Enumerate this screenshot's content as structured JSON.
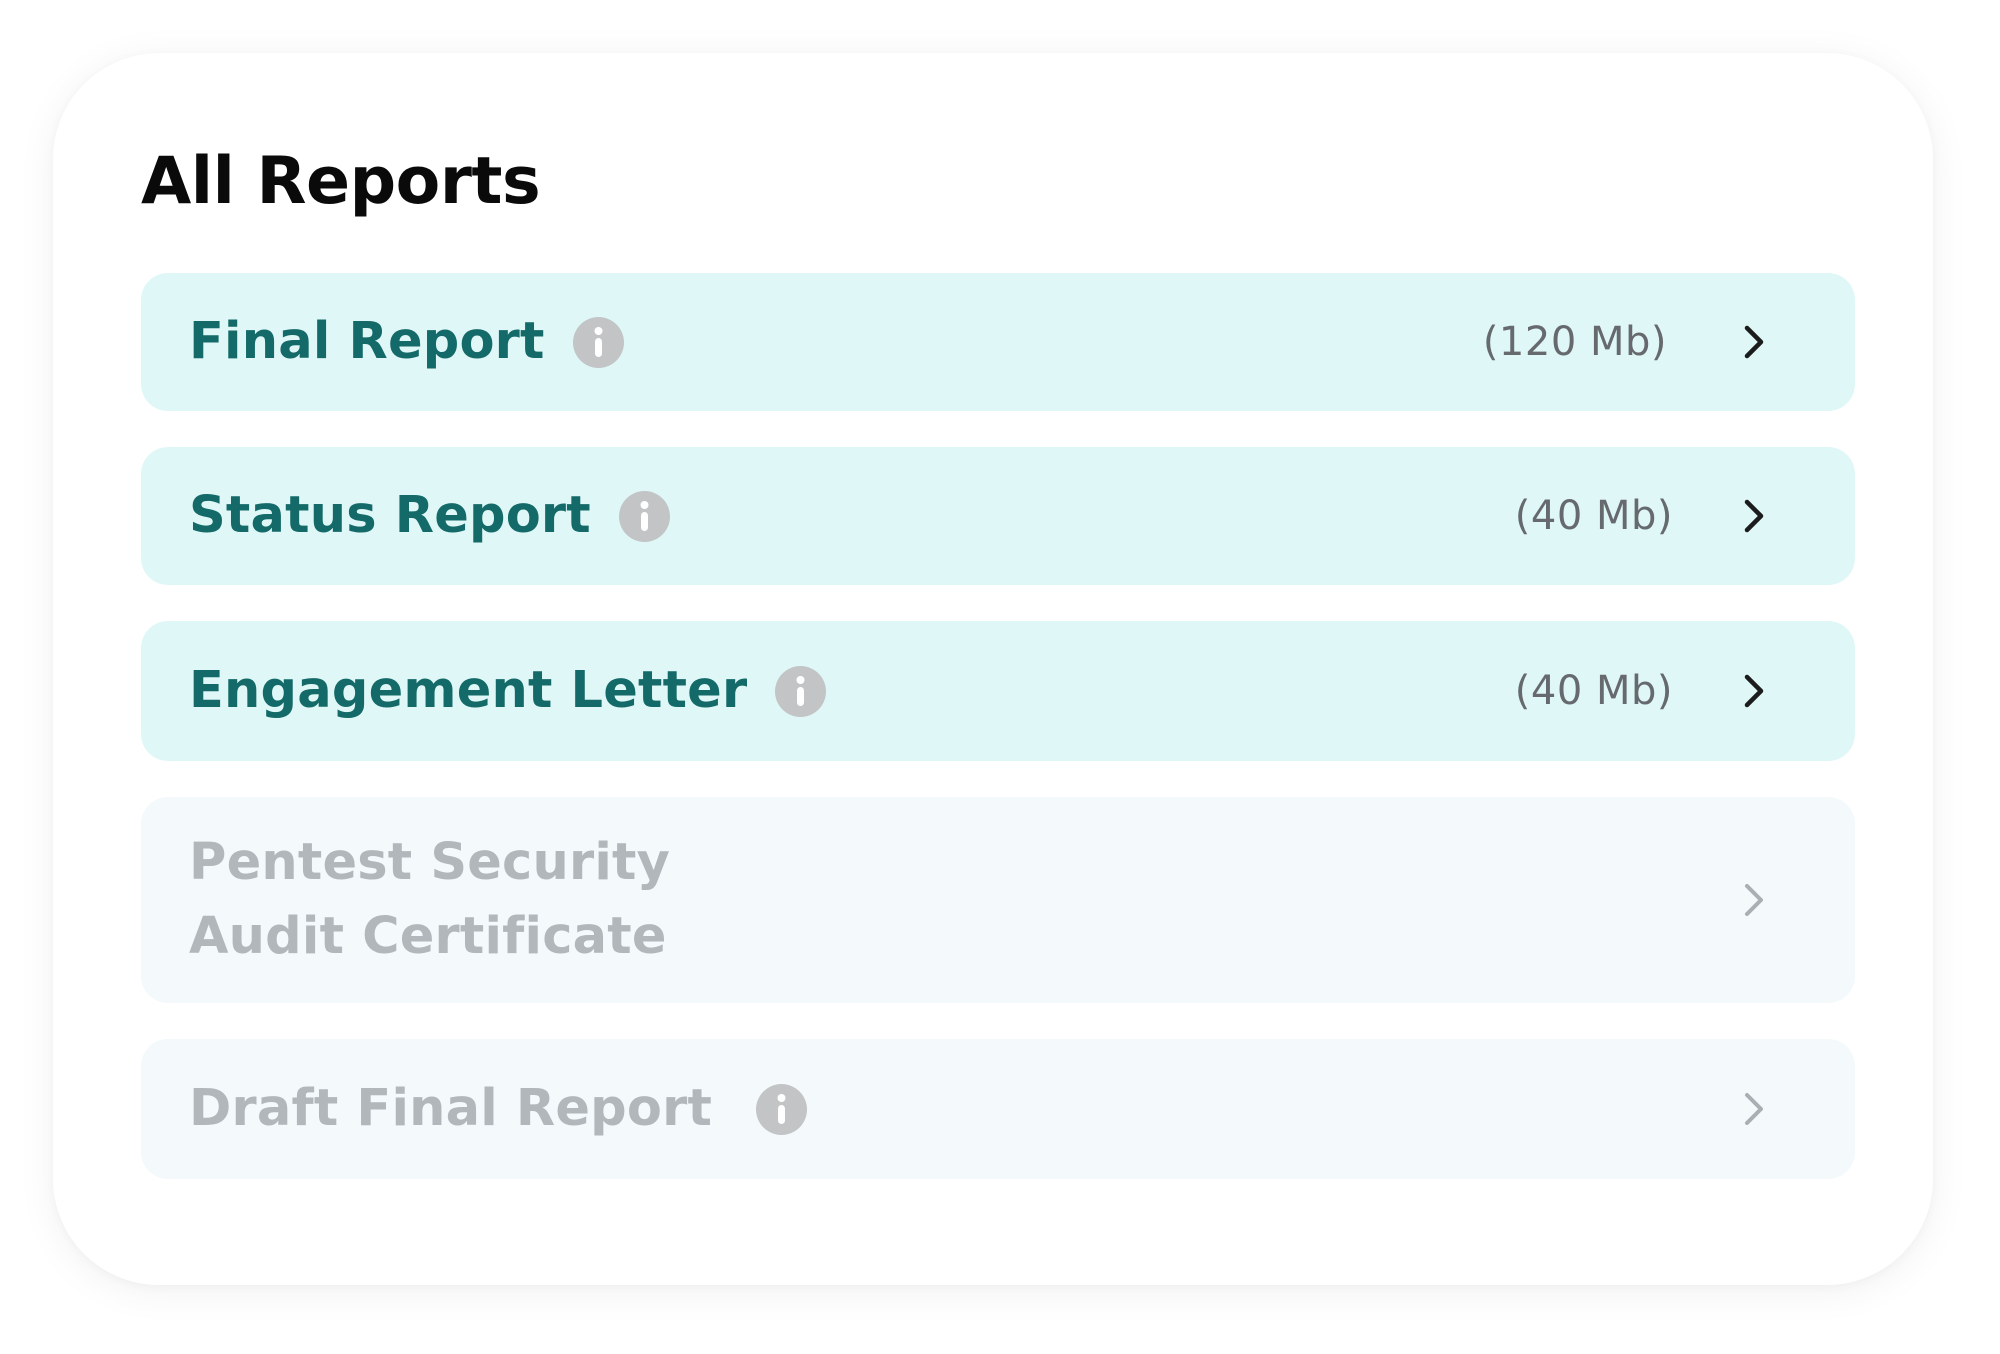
{
  "page": {
    "title": "All Reports"
  },
  "reports": [
    {
      "label": "Final Report",
      "size": "(120 Mb)",
      "has_info": true,
      "enabled": true
    },
    {
      "label": "Status Report",
      "size": "(40 Mb)",
      "has_info": true,
      "enabled": true
    },
    {
      "label": "Engagement Letter",
      "size": "(40 Mb)",
      "has_info": true,
      "enabled": true
    },
    {
      "label": "Pentest Security Audit Certificate",
      "size": "",
      "has_info": false,
      "enabled": false
    },
    {
      "label": "Draft Final Report",
      "size": "",
      "has_info": true,
      "enabled": false
    }
  ],
  "icons": {
    "info": "info-icon",
    "chevron": "chevron-right-icon"
  },
  "colors": {
    "active_row_bg": "#dff7f7",
    "active_label": "#136a68",
    "disabled_row_bg": "#f4f9fb",
    "disabled_label": "#b1b7bb",
    "info_icon_bg": "#c2c4c6",
    "size_text": "#666a6e",
    "title_text": "#0a0a0a"
  }
}
